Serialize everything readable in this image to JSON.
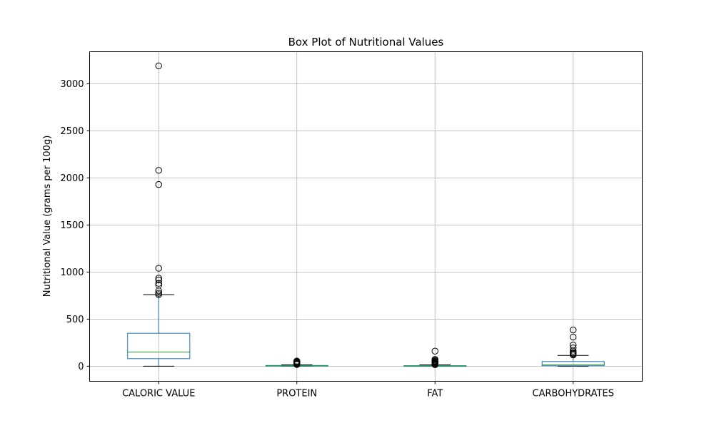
{
  "chart_data": {
    "type": "box",
    "title": "Box Plot of Nutritional Values",
    "xlabel": "",
    "ylabel": "Nutritional Value (grams per 100g)",
    "ylim": [
      -160,
      3340
    ],
    "yticks": [
      0,
      500,
      1000,
      1500,
      2000,
      2500,
      3000
    ],
    "grid": true,
    "colors": {
      "box": "#1f77b4",
      "median": "#2ca02c",
      "whisker_cap": "#000000",
      "grid": "#b0b0b0"
    },
    "categories": [
      "CALORIC VALUE",
      "PROTEIN",
      "FAT",
      "CARBOHYDRATES"
    ],
    "boxes": [
      {
        "label": "CALORIC VALUE",
        "whisker_low": 0,
        "q1": 80,
        "median": 150,
        "q3": 350,
        "whisker_high": 760,
        "outliers": [
          3190,
          2080,
          1930,
          1040,
          935,
          915,
          880,
          860,
          800,
          775,
          760
        ]
      },
      {
        "label": "PROTEIN",
        "whisker_low": 0,
        "q1": 1,
        "median": 3,
        "q3": 8,
        "whisker_high": 15,
        "outliers": [
          55,
          48,
          42,
          38,
          33,
          30,
          26,
          22,
          18
        ]
      },
      {
        "label": "FAT",
        "whisker_low": 0,
        "q1": 0.5,
        "median": 2,
        "q3": 6,
        "whisker_high": 14,
        "outliers": [
          160,
          72,
          62,
          55,
          48,
          42,
          36,
          30,
          25,
          20,
          16
        ]
      },
      {
        "label": "CARBOHYDRATES",
        "whisker_low": 0,
        "q1": 5,
        "median": 15,
        "q3": 50,
        "whisker_high": 115,
        "outliers": [
          385,
          310,
          225,
          195,
          160,
          145,
          135,
          125,
          120
        ]
      }
    ]
  }
}
